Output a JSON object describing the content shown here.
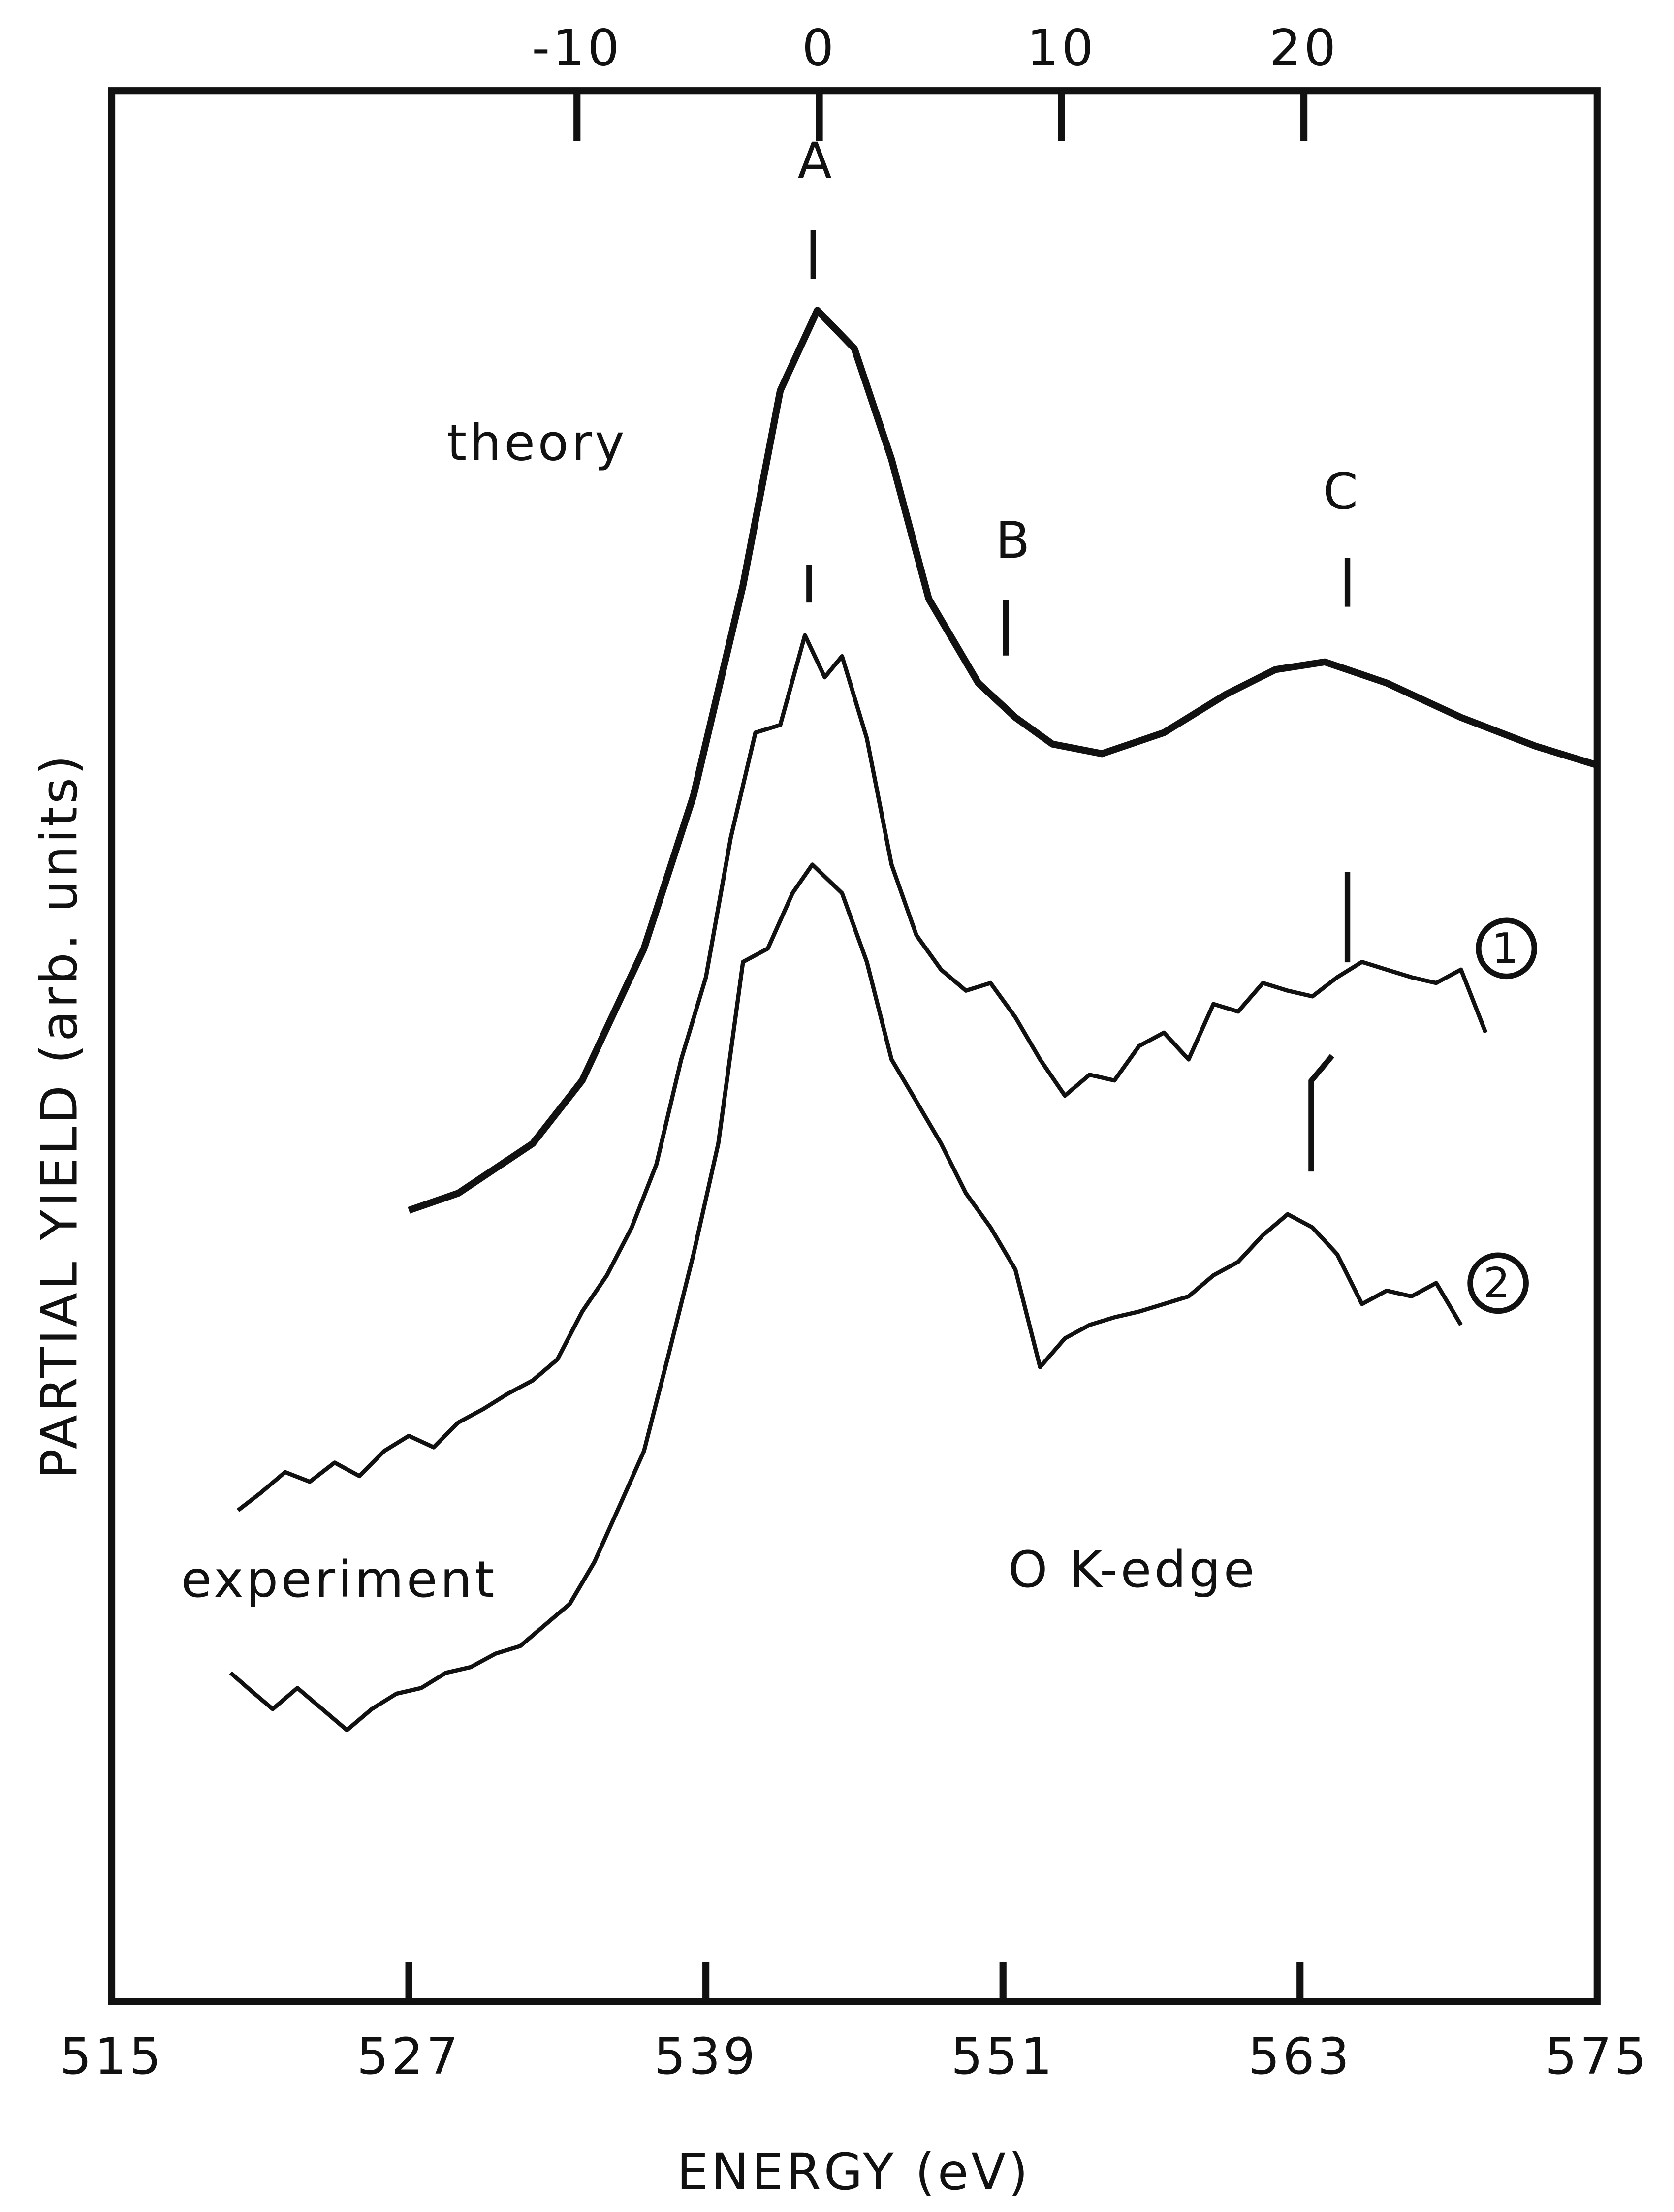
{
  "chart_data": {
    "type": "line",
    "xlabel": "ENERGY (eV)",
    "ylabel": "PARTIAL YIELD (arb. units)",
    "xlim": [
      515,
      575
    ],
    "xticks": [
      515,
      527,
      539,
      551,
      563,
      575
    ],
    "x2lim": [
      -29.2,
      32.1
    ],
    "x2ticks": [
      -10,
      0,
      10,
      20
    ],
    "ylim": [
      0,
      100
    ],
    "grid": false,
    "annotations": [
      "A",
      "B",
      "C",
      "experiment",
      "O K-edge"
    ],
    "series": [
      {
        "name": "theory",
        "color": "#111111",
        "width": 5,
        "x": [
          527,
          529,
          532,
          534,
          536.5,
          538.5,
          540.5,
          542,
          543.5,
          545,
          546.5,
          548,
          550,
          551.5,
          553,
          555,
          557.5,
          560,
          562,
          564,
          566.5,
          569.5,
          572.5,
          575
        ],
        "values": [
          41.4,
          42.3,
          44.9,
          48.2,
          55.1,
          63.1,
          74.1,
          84.3,
          88.5,
          86.5,
          80.7,
          73.4,
          69.0,
          67.2,
          65.8,
          65.3,
          66.4,
          68.4,
          69.7,
          70.1,
          69.0,
          67.2,
          65.7,
          64.7
        ]
      },
      {
        "name": "1",
        "color": "#111111",
        "width": 3,
        "x": [
          520.1,
          521,
          522,
          523,
          524,
          525,
          526,
          527,
          528,
          529,
          530,
          531,
          532,
          533,
          534,
          535,
          536,
          537,
          538,
          539,
          540,
          541,
          542,
          543,
          543.8,
          544.5,
          545.5,
          546.5,
          547.5,
          548.5,
          549.5,
          550.5,
          551.5,
          552.5,
          553.5,
          554.5,
          555.5,
          556.5,
          557.5,
          558.5,
          559.5,
          560.5,
          561.5,
          562.5,
          563.5,
          564.5,
          565.5,
          566.5,
          567.5,
          568.5,
          569.5,
          570.5
        ],
        "values": [
          25.7,
          26.6,
          27.7,
          27.2,
          28.2,
          27.5,
          28.8,
          29.6,
          29.0,
          30.3,
          31.0,
          31.8,
          32.5,
          33.6,
          36.1,
          38.0,
          40.5,
          43.8,
          49.3,
          53.6,
          60.9,
          66.4,
          66.8,
          71.5,
          69.3,
          70.4,
          66.1,
          59.5,
          55.8,
          54.0,
          52.9,
          53.3,
          51.5,
          49.3,
          47.4,
          48.5,
          48.2,
          50.0,
          50.7,
          49.3,
          52.2,
          51.8,
          53.3,
          52.9,
          52.6,
          53.6,
          54.4,
          54.0,
          53.6,
          53.3,
          54.0,
          50.7
        ]
      },
      {
        "name": "2",
        "color": "#111111",
        "width": 3,
        "x": [
          519.8,
          520.5,
          521.5,
          522.5,
          523.5,
          524.5,
          525.5,
          526.5,
          527.5,
          528.5,
          529.5,
          530.5,
          531.5,
          532.5,
          533.5,
          534.5,
          535.5,
          536.5,
          537.5,
          538.5,
          539.5,
          540.5,
          541.5,
          542.5,
          543.3,
          544.5,
          545.5,
          546.5,
          547.5,
          548.5,
          549.5,
          550.5,
          551.5,
          552.5,
          553.5,
          554.5,
          555.5,
          556.5,
          557.5,
          558.5,
          559.5,
          560.5,
          561.5,
          562.5,
          563.5,
          564.5,
          565.5,
          566.5,
          567.5,
          568.5,
          569.5
        ],
        "values": [
          17.2,
          16.4,
          15.3,
          16.4,
          15.3,
          14.2,
          15.3,
          16.1,
          16.4,
          17.2,
          17.5,
          18.2,
          18.6,
          19.7,
          20.8,
          23.0,
          25.9,
          28.8,
          33.9,
          39.1,
          44.9,
          54.4,
          55.1,
          58.0,
          59.5,
          58.0,
          54.4,
          49.3,
          47.1,
          44.9,
          42.3,
          40.5,
          38.3,
          33.2,
          34.7,
          35.4,
          35.8,
          36.1,
          36.5,
          36.9,
          38.0,
          38.7,
          40.1,
          41.2,
          40.5,
          39.1,
          36.5,
          37.2,
          36.9,
          37.6,
          35.4
        ]
      }
    ]
  }
}
